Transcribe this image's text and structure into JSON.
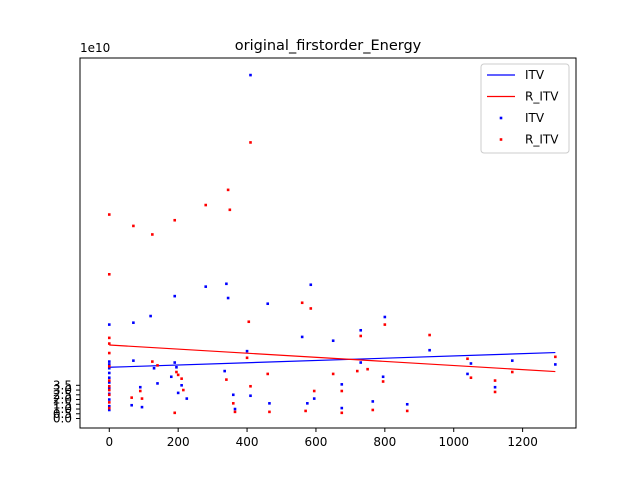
{
  "chart_data": {
    "type": "scatter",
    "title": "original_firstorder_Energy",
    "xlabel": "",
    "ylabel": "",
    "y_offset_text": "1e10",
    "y_scale": 10000000000,
    "xlim": [
      -85,
      1355
    ],
    "ylim": [
      -1.0,
      38.0
    ],
    "x_ticks": [
      0,
      200,
      400,
      600,
      800,
      1000,
      1200
    ],
    "y_ticks": [
      0.0,
      0.5,
      1.0,
      1.5,
      2.0,
      2.5,
      3.0,
      3.5
    ],
    "y_tick_labels": [
      "0.0",
      "0.5",
      "1.0",
      "1.5",
      "2.0",
      "2.5",
      "3.0",
      "3.5"
    ],
    "legend": {
      "position": "top-right",
      "entries": [
        {
          "label": "ITV",
          "kind": "line",
          "color": "#0000ff"
        },
        {
          "label": "R_ITV",
          "kind": "line",
          "color": "#ff0000"
        },
        {
          "label": "ITV",
          "kind": "marker",
          "color": "#0000ff"
        },
        {
          "label": "R_ITV",
          "kind": "marker",
          "color": "#ff0000"
        }
      ]
    },
    "series": [
      {
        "name": "ITV",
        "color": "#0000ff",
        "trend": {
          "x": [
            0,
            1295
          ],
          "y": [
            5.4,
            6.95
          ]
        },
        "points": [
          [
            0,
            9.9
          ],
          [
            0,
            6.0
          ],
          [
            0,
            5.7
          ],
          [
            0,
            5.3
          ],
          [
            0,
            4.8
          ],
          [
            0,
            4.3
          ],
          [
            0,
            3.8
          ],
          [
            0,
            3.2
          ],
          [
            0,
            2.6
          ],
          [
            0,
            2.0
          ],
          [
            0,
            1.3
          ],
          [
            0,
            0.9
          ],
          [
            65,
            1.4
          ],
          [
            70,
            10.1
          ],
          [
            70,
            6.1
          ],
          [
            90,
            3.3
          ],
          [
            95,
            1.2
          ],
          [
            120,
            10.8
          ],
          [
            130,
            5.3
          ],
          [
            140,
            3.7
          ],
          [
            180,
            4.4
          ],
          [
            190,
            12.9
          ],
          [
            190,
            5.9
          ],
          [
            195,
            5.4
          ],
          [
            200,
            2.7
          ],
          [
            210,
            3.5
          ],
          [
            225,
            2.1
          ],
          [
            280,
            13.9
          ],
          [
            335,
            5.0
          ],
          [
            340,
            14.2
          ],
          [
            345,
            12.7
          ],
          [
            360,
            2.5
          ],
          [
            365,
            1.0
          ],
          [
            400,
            7.1
          ],
          [
            410,
            36.2
          ],
          [
            410,
            2.4
          ],
          [
            460,
            12.1
          ],
          [
            465,
            1.6
          ],
          [
            560,
            8.6
          ],
          [
            575,
            1.6
          ],
          [
            585,
            14.1
          ],
          [
            595,
            2.1
          ],
          [
            650,
            8.2
          ],
          [
            675,
            3.6
          ],
          [
            675,
            1.1
          ],
          [
            730,
            9.3
          ],
          [
            730,
            5.9
          ],
          [
            765,
            1.8
          ],
          [
            795,
            4.4
          ],
          [
            800,
            10.7
          ],
          [
            865,
            1.5
          ],
          [
            930,
            7.2
          ],
          [
            1040,
            4.7
          ],
          [
            1050,
            5.8
          ],
          [
            1120,
            3.3
          ],
          [
            1170,
            6.1
          ],
          [
            1295,
            5.7
          ]
        ]
      },
      {
        "name": "R_ITV",
        "color": "#ff0000",
        "trend": {
          "x": [
            0,
            1295
          ],
          "y": [
            7.75,
            4.95
          ]
        },
        "points": [
          [
            0,
            21.5
          ],
          [
            0,
            15.2
          ],
          [
            0,
            8.5
          ],
          [
            0,
            7.9
          ],
          [
            0,
            6.9
          ],
          [
            0,
            5.5
          ],
          [
            0,
            4.0
          ],
          [
            0,
            3.4
          ],
          [
            0,
            3.0
          ],
          [
            0,
            2.5
          ],
          [
            0,
            1.7
          ],
          [
            0,
            1.1
          ],
          [
            65,
            2.2
          ],
          [
            70,
            20.3
          ],
          [
            90,
            2.9
          ],
          [
            95,
            2.1
          ],
          [
            125,
            19.4
          ],
          [
            125,
            6.0
          ],
          [
            140,
            5.6
          ],
          [
            190,
            20.9
          ],
          [
            190,
            0.6
          ],
          [
            195,
            4.9
          ],
          [
            200,
            4.6
          ],
          [
            210,
            4.2
          ],
          [
            215,
            3.0
          ],
          [
            280,
            22.5
          ],
          [
            340,
            4.1
          ],
          [
            345,
            24.1
          ],
          [
            350,
            22.0
          ],
          [
            360,
            1.6
          ],
          [
            365,
            0.7
          ],
          [
            400,
            6.4
          ],
          [
            405,
            10.2
          ],
          [
            410,
            29.1
          ],
          [
            410,
            3.4
          ],
          [
            460,
            4.7
          ],
          [
            465,
            0.7
          ],
          [
            560,
            12.2
          ],
          [
            570,
            0.8
          ],
          [
            585,
            11.6
          ],
          [
            595,
            2.9
          ],
          [
            650,
            4.7
          ],
          [
            675,
            2.9
          ],
          [
            675,
            0.6
          ],
          [
            720,
            5.0
          ],
          [
            730,
            8.7
          ],
          [
            750,
            5.2
          ],
          [
            765,
            0.9
          ],
          [
            795,
            3.9
          ],
          [
            800,
            9.9
          ],
          [
            865,
            0.8
          ],
          [
            930,
            8.8
          ],
          [
            1040,
            6.3
          ],
          [
            1050,
            4.3
          ],
          [
            1120,
            4.0
          ],
          [
            1120,
            2.8
          ],
          [
            1170,
            4.9
          ],
          [
            1295,
            6.5
          ]
        ]
      }
    ]
  }
}
